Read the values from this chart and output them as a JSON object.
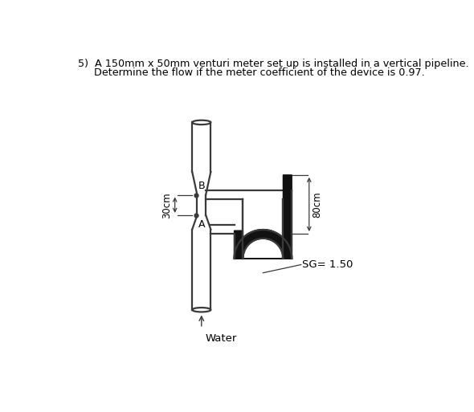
{
  "title_line1": "5)  A 150mm x 50mm venturi meter set up is installed in a vertical pipeline.",
  "title_line2": "     Determine the flow if the meter coefficient of the device is 0.97.",
  "label_A": "A",
  "label_B": "B",
  "label_30cm": "30cm",
  "label_80cm": "80cm",
  "label_SG": "SG= 1.50",
  "label_Water": "Water",
  "bg_color": "#ffffff",
  "line_color": "#3a3a3a",
  "dark_fill": "#111111",
  "figsize": [
    5.9,
    5.13
  ],
  "dpi": 100
}
